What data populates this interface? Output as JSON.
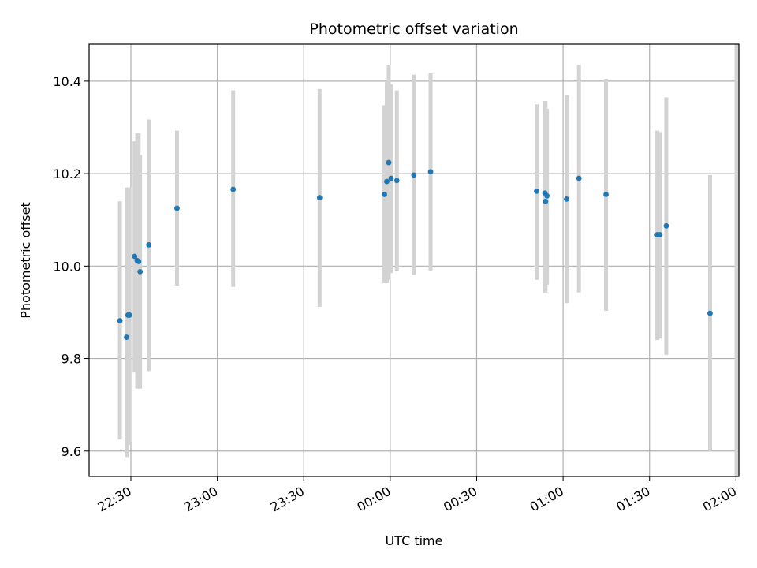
{
  "chart_data": {
    "type": "scatter",
    "title": "Photometric offset variation",
    "xlabel": "UTC time",
    "ylabel": "Photometric offset",
    "x_axis_kind": "time",
    "x_ticks": [
      "22:30",
      "23:00",
      "23:30",
      "00:00",
      "00:30",
      "01:00",
      "01:30",
      "02:00"
    ],
    "x_tick_values_min": [
      0,
      30,
      60,
      90,
      120,
      150,
      180,
      210
    ],
    "xlim_min": [
      -14.5,
      211
    ],
    "y_ticks": [
      "9.6",
      "9.8",
      "10.0",
      "10.2",
      "10.4"
    ],
    "y_tick_values": [
      9.6,
      9.8,
      10.0,
      10.2,
      10.4
    ],
    "ylim": [
      9.545,
      10.48
    ],
    "grid": true,
    "marker_color": "#1f77b4",
    "errorbar_color": "#d3d3d3",
    "series": [
      {
        "points": [
          {
            "t": -3.8,
            "y": 9.882,
            "lo": 9.625,
            "hi": 10.14
          },
          {
            "t": -1.5,
            "y": 9.846,
            "lo": 9.587,
            "hi": 10.17
          },
          {
            "t": -1.0,
            "y": 9.894,
            "lo": 9.613,
            "hi": 10.17
          },
          {
            "t": -0.5,
            "y": 9.894,
            "lo": 9.62,
            "hi": 10.17
          },
          {
            "t": 1.3,
            "y": 10.021,
            "lo": 9.77,
            "hi": 10.27
          },
          {
            "t": 2.2,
            "y": 10.012,
            "lo": 9.735,
            "hi": 10.287
          },
          {
            "t": 2.7,
            "y": 10.01,
            "lo": 9.735,
            "hi": 10.287
          },
          {
            "t": 3.2,
            "y": 9.988,
            "lo": 9.735,
            "hi": 10.24
          },
          {
            "t": 6.2,
            "y": 10.046,
            "lo": 9.773,
            "hi": 10.317
          },
          {
            "t": 16.0,
            "y": 10.125,
            "lo": 9.958,
            "hi": 10.293
          },
          {
            "t": 35.5,
            "y": 10.166,
            "lo": 9.955,
            "hi": 10.38
          },
          {
            "t": 65.5,
            "y": 10.148,
            "lo": 9.912,
            "hi": 10.383
          },
          {
            "t": 88.0,
            "y": 10.155,
            "lo": 9.963,
            "hi": 10.348
          },
          {
            "t": 88.8,
            "y": 10.183,
            "lo": 9.963,
            "hi": 10.4
          },
          {
            "t": 89.5,
            "y": 10.224,
            "lo": 9.97,
            "hi": 10.435
          },
          {
            "t": 90.3,
            "y": 10.19,
            "lo": 9.985,
            "hi": 10.393
          },
          {
            "t": 92.3,
            "y": 10.185,
            "lo": 9.99,
            "hi": 10.38
          },
          {
            "t": 98.2,
            "y": 10.197,
            "lo": 9.98,
            "hi": 10.414
          },
          {
            "t": 104.0,
            "y": 10.204,
            "lo": 9.99,
            "hi": 10.417
          },
          {
            "t": 140.8,
            "y": 10.162,
            "lo": 9.97,
            "hi": 10.35
          },
          {
            "t": 143.7,
            "y": 10.158,
            "lo": 9.943,
            "hi": 10.357
          },
          {
            "t": 143.9,
            "y": 10.14,
            "lo": 9.943,
            "hi": 10.357
          },
          {
            "t": 144.4,
            "y": 10.152,
            "lo": 9.96,
            "hi": 10.34
          },
          {
            "t": 151.2,
            "y": 10.145,
            "lo": 9.92,
            "hi": 10.37
          },
          {
            "t": 155.5,
            "y": 10.19,
            "lo": 9.943,
            "hi": 10.435
          },
          {
            "t": 164.9,
            "y": 10.155,
            "lo": 9.903,
            "hi": 10.405
          },
          {
            "t": 182.7,
            "y": 10.068,
            "lo": 9.84,
            "hi": 10.293
          },
          {
            "t": 183.6,
            "y": 10.068,
            "lo": 9.843,
            "hi": 10.29
          },
          {
            "t": 185.8,
            "y": 10.087,
            "lo": 9.808,
            "hi": 10.365
          },
          {
            "t": 201.0,
            "y": 9.898,
            "lo": 9.6,
            "hi": 10.197
          },
          {
            "t": 210.2,
            "y": null,
            "lo": 9.545,
            "hi": 10.48
          }
        ]
      }
    ]
  }
}
